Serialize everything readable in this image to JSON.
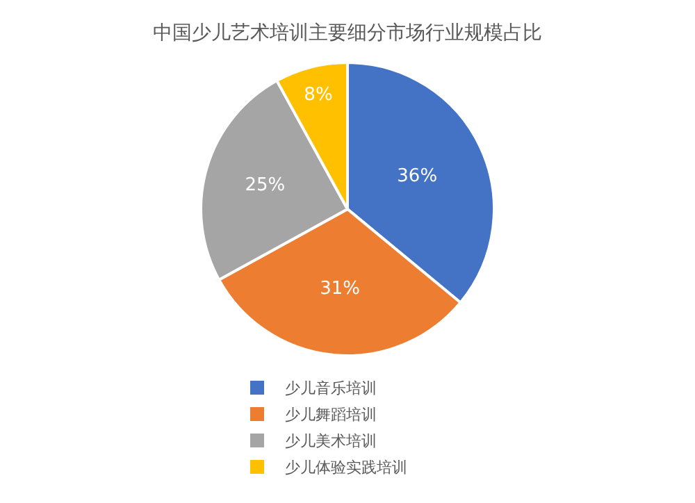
{
  "chart_data": {
    "type": "pie",
    "title": "中国少儿艺术培训主要细分市场行业规模占比",
    "categories": [
      "少儿音乐培训",
      "少儿舞蹈培训",
      "少儿美术培训",
      "少儿体验实践培训"
    ],
    "values": [
      36,
      31,
      25,
      8
    ],
    "colors": [
      "#4472c4",
      "#ed7d31",
      "#a5a5a5",
      "#ffc000"
    ],
    "value_labels": [
      "36%",
      "31%",
      "25%",
      "8%"
    ],
    "legend": "bottom"
  }
}
